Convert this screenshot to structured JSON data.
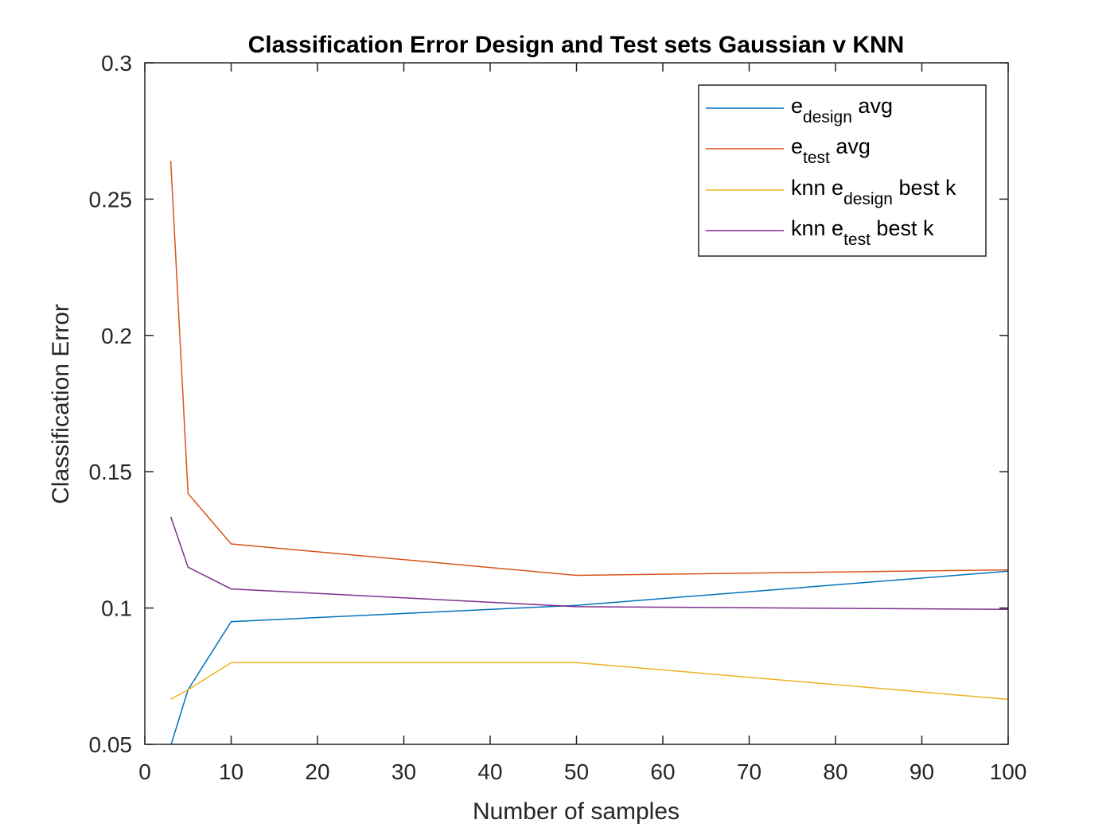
{
  "chart_data": {
    "type": "line",
    "title": "Classification Error Design and Test sets Gaussian v KNN",
    "xlabel": "Number of samples",
    "ylabel": "Classification Error",
    "xlim": [
      0,
      100
    ],
    "ylim": [
      0.05,
      0.3
    ],
    "xticks": [
      0,
      10,
      20,
      30,
      40,
      50,
      60,
      70,
      80,
      90,
      100
    ],
    "xtick_labels": [
      "0",
      "10",
      "20",
      "30",
      "40",
      "50",
      "60",
      "70",
      "80",
      "90",
      "100"
    ],
    "yticks": [
      0.05,
      0.1,
      0.15,
      0.2,
      0.25,
      0.3
    ],
    "ytick_labels": [
      "0.05",
      "0.1",
      "0.15",
      "0.2",
      "0.25",
      "0.3"
    ],
    "grid": false,
    "legend_position": "top-right",
    "x": [
      3,
      5,
      10,
      50,
      100
    ],
    "series": [
      {
        "legend_main": "e",
        "legend_sub": "design",
        "legend_tail": " avg",
        "color": "#0072BD",
        "values": [
          0.0495,
          0.07,
          0.095,
          0.101,
          0.1135
        ]
      },
      {
        "legend_main": "e",
        "legend_sub": "test",
        "legend_tail": " avg",
        "color": "#D95319",
        "values": [
          0.264,
          0.142,
          0.1235,
          0.112,
          0.114
        ]
      },
      {
        "legend_main": "knn e",
        "legend_sub": "design",
        "legend_tail": " best k",
        "color": "#EDB120",
        "values": [
          0.0665,
          0.07,
          0.08,
          0.08,
          0.0665
        ]
      },
      {
        "legend_main": "knn e",
        "legend_sub": "test",
        "legend_tail": " best k",
        "color": "#7E2F8E",
        "values": [
          0.1335,
          0.115,
          0.107,
          0.1005,
          0.0995
        ]
      }
    ]
  }
}
